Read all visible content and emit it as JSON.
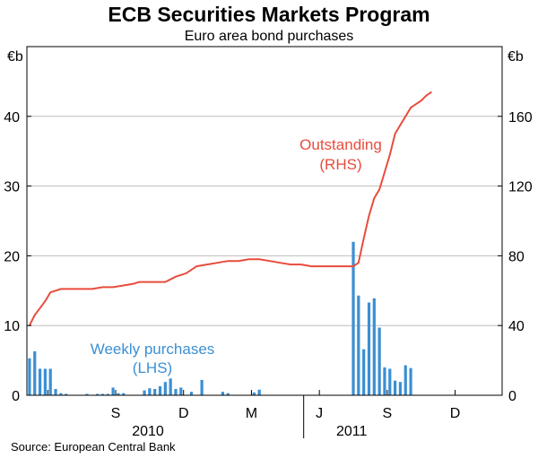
{
  "chart_data": {
    "type": "bar+line",
    "title": "ECB Securities Markets Program",
    "subtitle": "Euro area bond purchases",
    "left_unit": "€b",
    "right_unit": "€b",
    "left_ylim": [
      0,
      50
    ],
    "right_ylim": [
      0,
      200
    ],
    "left_ticks": [
      "0",
      "10",
      "20",
      "30",
      "40"
    ],
    "right_ticks": [
      "0",
      "40",
      "80",
      "120",
      "160"
    ],
    "left_tick_values": [
      0,
      10,
      20,
      30,
      40
    ],
    "right_tick_values": [
      0,
      40,
      80,
      120,
      160
    ],
    "x_month_labels": [
      "S",
      "D",
      "M",
      "J",
      "S",
      "D"
    ],
    "x_month_label_weeks": [
      17,
      30,
      43,
      56,
      69,
      82
    ],
    "x_year_labels": [
      "2010",
      "2011"
    ],
    "x_year_label_weeks": [
      17,
      56
    ],
    "year_divider_week": 53,
    "x_range_weeks": [
      0,
      91
    ],
    "grid": true,
    "source": "Source: European Central Bank",
    "annotations": {
      "outstanding": [
        "Outstanding",
        "(RHS)"
      ],
      "weekly": [
        "Weekly purchases",
        "(LHS)"
      ]
    },
    "weekly_purchases": {
      "name": "Weekly purchases",
      "axis": "left",
      "color": "#3b8fd3",
      "weeks": [
        0,
        1,
        2,
        3,
        4,
        5,
        6,
        7,
        11,
        13,
        14,
        15,
        16,
        17,
        18,
        22,
        23,
        24,
        25,
        26,
        27,
        28,
        29,
        31,
        33,
        37,
        38,
        43,
        44,
        62,
        63,
        64,
        65,
        66,
        67,
        68,
        69,
        70,
        71,
        72,
        73,
        74,
        75,
        76,
        77
      ],
      "values": [
        5.3,
        6.3,
        3.8,
        3.8,
        3.8,
        0.9,
        0.3,
        0.2,
        0.2,
        0.2,
        0.2,
        0.2,
        1.1,
        0.3,
        0.3,
        0.7,
        1.0,
        0.9,
        1.3,
        1.9,
        2.4,
        0.9,
        1.1,
        0.5,
        2.2,
        0.5,
        0.3,
        0.4,
        0.8,
        22.0,
        14.3,
        6.6,
        13.3,
        13.9,
        9.7,
        4.0,
        3.8,
        2.1,
        1.9,
        4.3,
        3.9,
        0,
        0,
        0,
        0
      ]
    },
    "outstanding": {
      "name": "Outstanding",
      "axis": "right",
      "color": "#e84c3d",
      "points": [
        [
          0,
          40
        ],
        [
          1,
          46
        ],
        [
          2,
          50
        ],
        [
          3,
          54
        ],
        [
          4,
          59
        ],
        [
          5,
          60
        ],
        [
          6,
          61
        ],
        [
          8,
          61
        ],
        [
          10,
          61
        ],
        [
          12,
          61
        ],
        [
          14,
          62
        ],
        [
          16,
          62
        ],
        [
          18,
          63
        ],
        [
          20,
          64
        ],
        [
          21,
          65
        ],
        [
          24,
          65
        ],
        [
          26,
          65
        ],
        [
          28,
          68
        ],
        [
          30,
          70
        ],
        [
          32,
          74
        ],
        [
          34,
          75
        ],
        [
          36,
          76
        ],
        [
          38,
          77
        ],
        [
          40,
          77
        ],
        [
          42,
          78
        ],
        [
          44,
          78
        ],
        [
          46,
          77
        ],
        [
          48,
          76
        ],
        [
          50,
          75
        ],
        [
          52,
          75
        ],
        [
          54,
          74
        ],
        [
          56,
          74
        ],
        [
          58,
          74
        ],
        [
          60,
          74
        ],
        [
          62,
          74
        ],
        [
          63,
          76
        ],
        [
          64,
          90
        ],
        [
          65,
          103
        ],
        [
          66,
          113
        ],
        [
          67,
          118
        ],
        [
          68,
          128
        ],
        [
          69,
          138
        ],
        [
          70,
          150
        ],
        [
          71,
          155
        ],
        [
          72,
          160
        ],
        [
          73,
          165
        ],
        [
          74,
          167
        ],
        [
          75,
          169
        ],
        [
          76,
          172
        ],
        [
          77,
          174
        ]
      ]
    }
  }
}
